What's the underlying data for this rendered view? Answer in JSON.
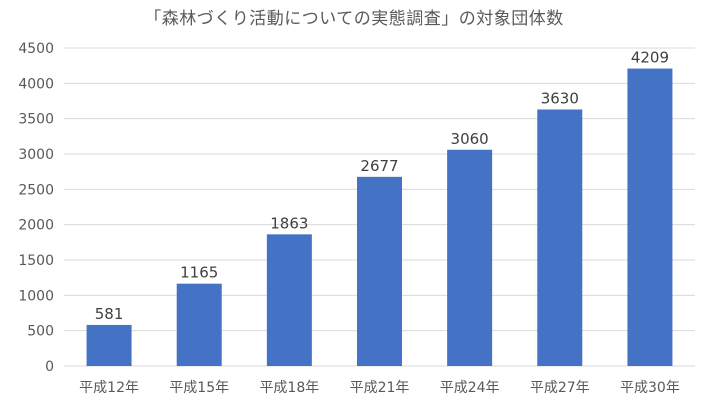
{
  "chart_data": {
    "type": "bar",
    "title": "「森林づくり活動についての実態調査」の対象団体数",
    "xlabel": "",
    "ylabel": "",
    "categories": [
      "平成12年",
      "平成15年",
      "平成18年",
      "平成21年",
      "平成24年",
      "平成27年",
      "平成30年"
    ],
    "values": [
      581,
      1165,
      1863,
      2677,
      3060,
      3630,
      4209
    ],
    "ylim": [
      0,
      4500
    ],
    "yticks": [
      0,
      500,
      1000,
      1500,
      2000,
      2500,
      3000,
      3500,
      4000,
      4500
    ],
    "grid": true,
    "legend": "none",
    "bar_color": "#4472C4",
    "grid_color": "#d9d9d9"
  }
}
